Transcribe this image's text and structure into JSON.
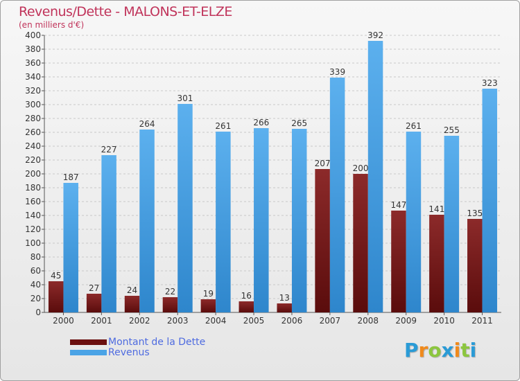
{
  "header": {
    "title": "Revenus/Dette - MALONS-ET-ELZE",
    "subtitle": "(en milliers d'€)"
  },
  "logo": {
    "letters": [
      {
        "ch": "P",
        "color": "#2a9bd6"
      },
      {
        "ch": "r",
        "color": "#f08a1c"
      },
      {
        "ch": "o",
        "color": "#8cc63f"
      },
      {
        "ch": "x",
        "color": "#2a9bd6"
      },
      {
        "ch": "i",
        "color": "#f08a1c"
      },
      {
        "ch": "t",
        "color": "#8cc63f"
      },
      {
        "ch": "i",
        "color": "#2a9bd6"
      }
    ]
  },
  "chart_data": {
    "type": "bar",
    "categories": [
      "2000",
      "2001",
      "2002",
      "2003",
      "2004",
      "2005",
      "2006",
      "2007",
      "2008",
      "2009",
      "2010",
      "2011"
    ],
    "series": [
      {
        "name": "Montant de la Dette",
        "color": "#7a1818",
        "values": [
          45,
          27,
          24,
          22,
          19,
          16,
          13,
          207,
          200,
          147,
          141,
          135
        ]
      },
      {
        "name": "Revenus",
        "color": "#4aa3e6",
        "values": [
          187,
          227,
          264,
          301,
          261,
          266,
          265,
          339,
          392,
          261,
          255,
          323
        ]
      }
    ],
    "ylim": [
      0,
      400
    ],
    "ytick_step": 20,
    "grid": true,
    "legend_position": "bottom-left"
  }
}
